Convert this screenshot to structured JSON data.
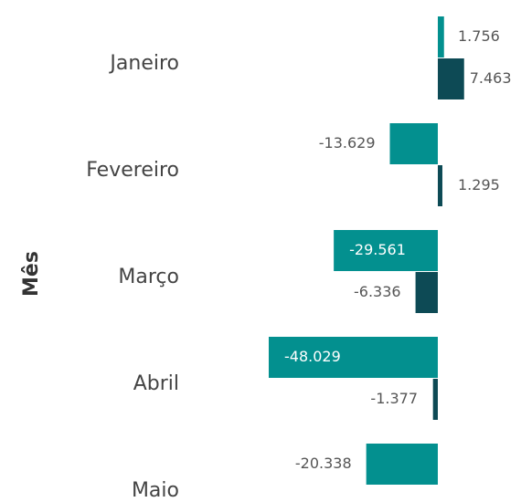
{
  "chart_data": {
    "type": "bar",
    "orientation": "horizontal",
    "y_label": "Mês",
    "categories": [
      "Janeiro",
      "Fevereiro",
      "Março",
      "Abril",
      "Maio"
    ],
    "series": [
      {
        "color": "#03908f",
        "values": [
          1756,
          -13629,
          -29561,
          -48029,
          -20338
        ],
        "value_labels": [
          "1.756",
          "-13.629",
          "-29.561",
          "-48.029",
          "-20.338"
        ]
      },
      {
        "color": "#0d4a55",
        "values": [
          7463,
          1295,
          -6336,
          -1377,
          null
        ],
        "value_labels": [
          "7.463",
          "1.295",
          "-6.336",
          "-1.377",
          null
        ]
      }
    ]
  }
}
